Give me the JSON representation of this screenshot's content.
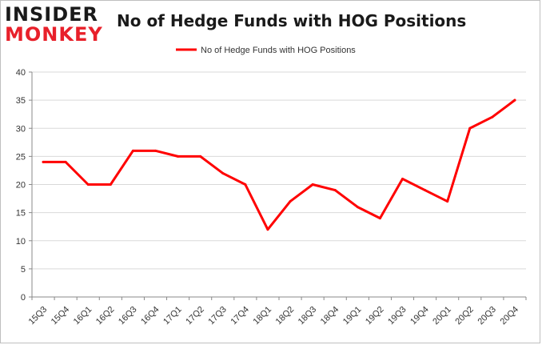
{
  "brand": {
    "logo_line1": "INSIDER",
    "logo_line2": "MONKEY"
  },
  "chart_data": {
    "type": "line",
    "title": "No of Hedge Funds with HOG Positions",
    "legend_position": "top-center",
    "grid": true,
    "ylim": [
      0,
      40
    ],
    "yticks": [
      0,
      5,
      10,
      15,
      20,
      25,
      30,
      35,
      40
    ],
    "categories": [
      "15Q3",
      "15Q4",
      "16Q1",
      "16Q2",
      "16Q3",
      "16Q4",
      "17Q1",
      "17Q2",
      "17Q3",
      "17Q4",
      "18Q1",
      "18Q2",
      "18Q3",
      "18Q4",
      "19Q1",
      "19Q2",
      "19Q3",
      "19Q4",
      "20Q1",
      "20Q2",
      "20Q3",
      "20Q4"
    ],
    "series": [
      {
        "name": "No of Hedge Funds with HOG Positions",
        "color": "#ff0000",
        "values": [
          24,
          24,
          20,
          20,
          26,
          26,
          25,
          25,
          22,
          20,
          12,
          17,
          20,
          19,
          16,
          14,
          21,
          19,
          17,
          30,
          32,
          35
        ]
      }
    ]
  }
}
